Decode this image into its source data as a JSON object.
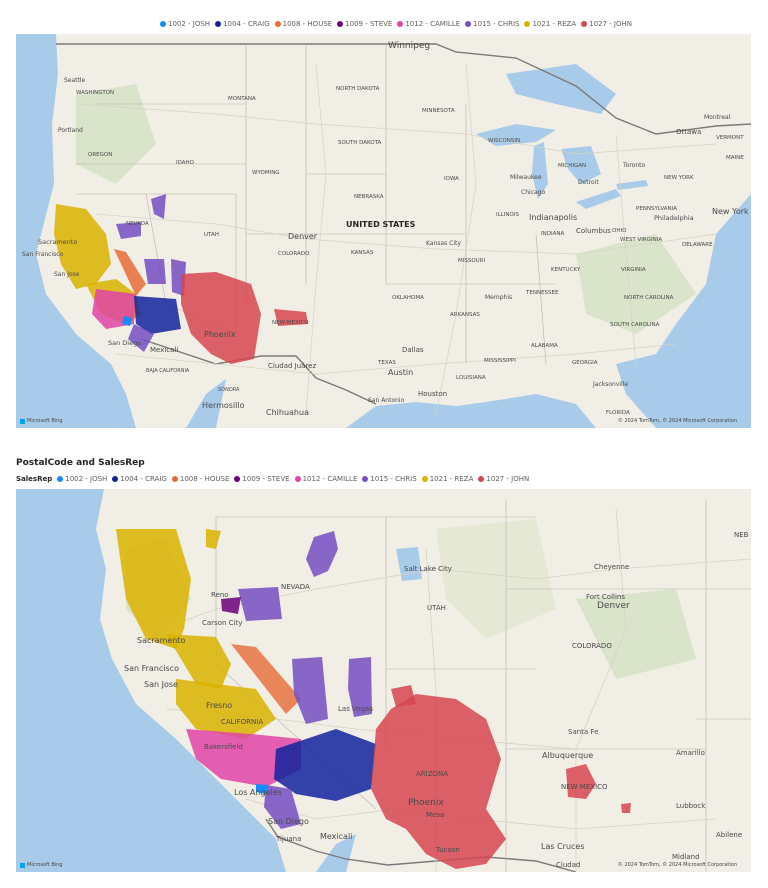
{
  "legend_entries": [
    {
      "label": "1002 - JOSH",
      "color": "#118DFF"
    },
    {
      "label": "1004 - CRAIG",
      "color": "#12239E"
    },
    {
      "label": "1008 - HOUSE",
      "color": "#E66C37"
    },
    {
      "label": "1009 - STEVE",
      "color": "#6B007B"
    },
    {
      "label": "1012 - CAMILLE",
      "color": "#E044A7"
    },
    {
      "label": "1015 - CHRIS",
      "color": "#744EC2"
    },
    {
      "label": "1021 - REZA",
      "color": "#D9B300"
    },
    {
      "label": "1027 - JOHN",
      "color": "#D64550"
    }
  ],
  "map1": {
    "labels": {
      "winnipeg": "Winnipeg",
      "seattle": "Seattle",
      "washington": "WASHINGTON",
      "montana": "MONTANA",
      "north_dakota": "NORTH DAKOTA",
      "minnesota": "MINNESOTA",
      "portland": "Portland",
      "oregon": "OREGON",
      "idaho": "IDAHO",
      "south_dakota": "SOUTH DAKOTA",
      "wisconsin": "WISCONSIN",
      "michigan": "MICHIGAN",
      "toronto": "Toronto",
      "ottawa": "Ottawa",
      "montreal": "Montreal",
      "new_york_state": "NEW YORK",
      "wyoming": "WYOMING",
      "iowa": "IOWA",
      "milwaukee": "Milwaukee",
      "detroit": "Detroit",
      "nebraska": "NEBRASKA",
      "chicago": "Chicago",
      "illinois": "ILLINOIS",
      "indianapolis": "Indianapolis",
      "columbus": "Columbus",
      "pennsylvania": "PENNSYLVANIA",
      "philadelphia": "Philadelphia",
      "new_york_city": "New York",
      "nevada": "NEVADA",
      "sacramento": "Sacramento",
      "san_francisco": "San Francisco",
      "san_jose": "San Jose",
      "utah": "UTAH",
      "denver": "Denver",
      "united_states": "UNITED STATES",
      "kansas_city": "Kansas City",
      "colorado": "COLORADO",
      "kansas": "KANSAS",
      "missouri": "MISSOURI",
      "indiana": "INDIANA",
      "ohio": "OHIO",
      "west_virginia": "WEST VIRGINIA",
      "virginia": "VIRGINIA",
      "delaware": "DELAWARE",
      "kentucky": "KENTUCKY",
      "phoenix": "Phoenix",
      "new_mexico": "NEW MEXICO",
      "oklahoma": "OKLAHOMA",
      "memphis": "Memphis",
      "tennessee": "TENNESSEE",
      "north_carolina": "NORTH CAROLINA",
      "san_diego": "San Diego",
      "mexicali": "Mexicali",
      "arkansas": "ARKANSAS",
      "south_carolina": "SOUTH CAROLINA",
      "alabama": "ALABAMA",
      "dallas": "Dallas",
      "texas": "TEXAS",
      "mississippi": "MISSISSIPPI",
      "georgia": "GEORGIA",
      "baja_california": "BAJA CALIFORNIA",
      "ciudad_juarez": "Ciudad Juárez",
      "austin": "Austin",
      "louisiana": "LOUISIANA",
      "jacksonville": "Jacksonville",
      "sonora": "SONORA",
      "houston": "Houston",
      "san_antonio": "San Antonio",
      "hermosillo": "Hermosillo",
      "chihuahua": "Chihuahua",
      "vermont": "VERMONT",
      "maine": "MAINE",
      "florida": "FLORIDA"
    },
    "logo": "Microsoft Bing",
    "copyright": "© 2024 TomTom, © 2024 Microsoft Corporation"
  },
  "chart_title": "PostalCode and SalesRep",
  "legend_title": "SalesRep",
  "map2": {
    "labels": {
      "salt_lake_city": "Salt Lake City",
      "nevada": "NEVADA",
      "cheyenne": "Cheyenne",
      "neb": "NEB",
      "fort_collins": "Fort Collins",
      "reno": "Reno",
      "carson_city": "Carson City",
      "utah": "UTAH",
      "denver": "Denver",
      "sacramento": "Sacramento",
      "colorado": "COLORADO",
      "san_francisco": "San Francisco",
      "san_jose": "San Jose",
      "fresno": "Fresno",
      "california": "CALIFORNIA",
      "las_vegas": "Las Vegas",
      "bakersfield": "Bakersfield",
      "santa_fe": "Santa Fe",
      "albuquerque": "Albuquerque",
      "amarillo": "Amarillo",
      "arizona": "ARIZONA",
      "los_angeles": "Los Angeles",
      "new_mexico": "NEW MEXICO",
      "phoenix": "Phoenix",
      "mesa": "Mesa",
      "lubbock": "Lubbock",
      "san_diego": "San Diego",
      "abilene": "Abilene",
      "tijuana": "Tijuana",
      "mexicali": "Mexicali",
      "tucson": "Tucson",
      "las_cruces": "Las Cruces",
      "midland": "Midland",
      "ciudad": "Ciudad"
    },
    "logo": "Microsoft Bing",
    "copyright": "© 2024 TomTom, © 2024 Microsoft Corporation"
  }
}
